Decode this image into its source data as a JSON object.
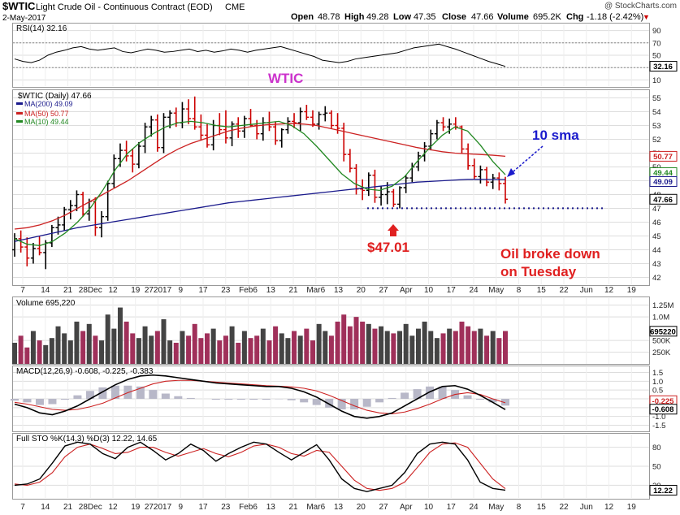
{
  "header": {
    "symbol": "$WTIC",
    "name": "Light Crude Oil - Continuous Contract (EOD)",
    "exchange": "CME",
    "date": "2-May-2017",
    "open_label": "Open",
    "open": "48.78",
    "high_label": "High",
    "high": "49.28",
    "low_label": "Low",
    "low": "47.35",
    "close_label": "Close",
    "close": "47.66",
    "volume_label": "Volume",
    "volume": "695.2K",
    "chg_label": "Chg",
    "chg": "-1.18 (-2.42%)",
    "chg_arrow": "▼",
    "credit": "@ StockCharts.com"
  },
  "colors": {
    "up": "#000000",
    "down": "#cc0000",
    "ma200": "#1a1a8c",
    "ma50": "#cc2222",
    "ma10": "#228822",
    "volume_bar": "#a0305a",
    "annotation_blue": "#1a1acc",
    "annotation_red": "#e02020",
    "wtic_label": "#cc33cc",
    "grid": "#dddddd"
  },
  "chart_data": [
    {
      "type": "line",
      "panel": "rsi",
      "title": "RSI(14) 32.16",
      "yticks": [
        10,
        30,
        50,
        70,
        90
      ],
      "ylim": [
        0,
        100
      ],
      "current_value": "32.16",
      "values": [
        44,
        40,
        38,
        42,
        50,
        55,
        58,
        62,
        64,
        60,
        58,
        60,
        62,
        56,
        54,
        57,
        60,
        58,
        55,
        56,
        58,
        60,
        56,
        58,
        55,
        57,
        60,
        58,
        55,
        58,
        60,
        62,
        64,
        60,
        56,
        52,
        48,
        42,
        40,
        38,
        40,
        44,
        46,
        48,
        50,
        52,
        54,
        58,
        62,
        64,
        66,
        68,
        64,
        60,
        55,
        50,
        45,
        40,
        36,
        32
      ]
    },
    {
      "type": "candlestick",
      "panel": "price",
      "title": "$WTIC (Daily) 47.66",
      "legend": [
        "MA(200) 49.09",
        "MA(50) 50.77",
        "MA(10) 49.44"
      ],
      "ylim": [
        41.5,
        55.5
      ],
      "yticks": [
        42,
        43,
        44,
        45,
        46,
        47,
        48,
        49,
        50,
        51,
        52,
        53,
        54,
        55
      ],
      "right_tags": [
        "50.77",
        "49.44",
        "49.09",
        "47.66"
      ],
      "xticks": [
        "7",
        "14",
        "21",
        "28Dec",
        "12",
        "19",
        "272017",
        "9",
        "17",
        "23",
        "Feb6",
        "13",
        "21",
        "Mar6",
        "13",
        "20",
        "27",
        "Apr",
        "10",
        "17",
        "24",
        "May",
        "8",
        "15",
        "22",
        "Jun",
        "12",
        "19"
      ],
      "ohlc": [
        [
          44.0,
          45.2,
          43.5,
          44.8
        ],
        [
          44.8,
          45.4,
          43.8,
          44.2
        ],
        [
          44.2,
          44.9,
          42.8,
          43.4
        ],
        [
          43.4,
          44.5,
          43.0,
          44.1
        ],
        [
          44.1,
          45.0,
          43.6,
          43.8
        ],
        [
          43.8,
          44.7,
          42.6,
          44.5
        ],
        [
          44.5,
          45.8,
          44.2,
          45.6
        ],
        [
          45.6,
          46.4,
          45.1,
          45.8
        ],
        [
          45.8,
          47.1,
          45.4,
          46.9
        ],
        [
          46.9,
          47.6,
          46.2,
          47.2
        ],
        [
          47.2,
          48.3,
          46.8,
          48.0
        ],
        [
          48.0,
          48.2,
          46.4,
          46.6
        ],
        [
          46.6,
          47.7,
          46.1,
          47.5
        ],
        [
          47.5,
          47.8,
          45.0,
          45.6
        ],
        [
          45.6,
          46.8,
          44.9,
          46.4
        ],
        [
          46.4,
          49.0,
          46.1,
          48.8
        ],
        [
          48.8,
          50.9,
          48.5,
          50.6
        ],
        [
          50.6,
          51.7,
          50.0,
          51.2
        ],
        [
          51.2,
          51.9,
          50.4,
          50.8
        ],
        [
          50.8,
          51.3,
          49.6,
          50.2
        ],
        [
          50.2,
          51.8,
          49.9,
          51.5
        ],
        [
          51.5,
          53.2,
          51.0,
          52.9
        ],
        [
          52.9,
          53.7,
          52.2,
          53.4
        ],
        [
          53.4,
          53.8,
          51.1,
          51.4
        ],
        [
          51.4,
          53.9,
          51.0,
          53.6
        ],
        [
          53.6,
          54.1,
          52.8,
          53.9
        ],
        [
          53.9,
          54.3,
          52.9,
          53.2
        ],
        [
          53.2,
          54.7,
          52.8,
          54.2
        ],
        [
          54.2,
          54.9,
          53.1,
          53.5
        ],
        [
          53.5,
          55.1,
          52.7,
          52.9
        ],
        [
          52.9,
          53.8,
          51.9,
          52.3
        ],
        [
          52.3,
          53.1,
          51.4,
          51.6
        ],
        [
          51.6,
          53.4,
          51.2,
          53.0
        ],
        [
          53.0,
          53.9,
          52.3,
          52.7
        ],
        [
          52.7,
          54.1,
          51.7,
          52.1
        ],
        [
          52.1,
          53.3,
          51.5,
          53.1
        ],
        [
          53.1,
          53.6,
          52.1,
          52.6
        ],
        [
          52.6,
          53.7,
          52.1,
          53.5
        ],
        [
          53.5,
          54.2,
          52.9,
          53.0
        ],
        [
          53.0,
          53.4,
          52.0,
          52.4
        ],
        [
          52.4,
          53.6,
          51.9,
          53.2
        ],
        [
          53.2,
          54.0,
          52.6,
          52.9
        ],
        [
          52.9,
          53.3,
          51.6,
          51.9
        ],
        [
          51.9,
          52.8,
          51.4,
          52.7
        ],
        [
          52.7,
          53.6,
          52.4,
          53.3
        ],
        [
          53.3,
          53.9,
          52.8,
          53.2
        ],
        [
          53.2,
          54.3,
          52.6,
          54.0
        ],
        [
          54.0,
          54.5,
          53.4,
          53.6
        ],
        [
          53.6,
          54.1,
          52.9,
          53.1
        ],
        [
          53.1,
          54.0,
          52.7,
          53.8
        ],
        [
          53.8,
          54.4,
          53.3,
          53.9
        ],
        [
          53.9,
          54.1,
          52.8,
          53.0
        ],
        [
          53.0,
          53.9,
          52.4,
          52.8
        ],
        [
          52.8,
          53.2,
          50.4,
          50.9
        ],
        [
          50.9,
          51.3,
          49.6,
          49.9
        ],
        [
          49.9,
          50.2,
          48.0,
          48.4
        ],
        [
          48.4,
          49.1,
          47.6,
          48.3
        ],
        [
          48.3,
          49.6,
          47.9,
          49.4
        ],
        [
          49.4,
          49.8,
          47.4,
          47.8
        ],
        [
          47.8,
          48.6,
          47.2,
          48.0
        ],
        [
          48.0,
          48.9,
          47.3,
          48.2
        ],
        [
          48.2,
          48.4,
          47.1,
          47.3
        ],
        [
          47.3,
          48.6,
          47.0,
          48.5
        ],
        [
          48.5,
          49.4,
          48.1,
          49.2
        ],
        [
          49.2,
          50.3,
          48.9,
          50.0
        ],
        [
          50.0,
          51.1,
          49.7,
          50.8
        ],
        [
          50.8,
          51.8,
          50.4,
          51.5
        ],
        [
          51.5,
          52.7,
          51.2,
          52.4
        ],
        [
          52.4,
          53.4,
          52.0,
          53.2
        ],
        [
          53.2,
          53.6,
          52.6,
          52.9
        ],
        [
          52.9,
          53.5,
          52.4,
          53.1
        ],
        [
          53.1,
          53.6,
          52.7,
          52.9
        ],
        [
          52.9,
          53.0,
          51.0,
          51.3
        ],
        [
          51.3,
          51.7,
          49.8,
          50.1
        ],
        [
          50.1,
          50.6,
          49.1,
          49.3
        ],
        [
          49.3,
          50.1,
          48.8,
          49.8
        ],
        [
          49.8,
          50.0,
          48.6,
          48.9
        ],
        [
          48.9,
          49.5,
          48.4,
          49.2
        ],
        [
          49.2,
          49.6,
          48.3,
          48.8
        ],
        [
          48.8,
          49.28,
          47.35,
          47.66
        ]
      ],
      "ma200": [
        44.6,
        44.8,
        45.0,
        45.2,
        45.4,
        45.6,
        45.75,
        45.9,
        46.05,
        46.2,
        46.35,
        46.5,
        46.65,
        46.8,
        46.95,
        47.1,
        47.25,
        47.4,
        47.5,
        47.6,
        47.7,
        47.8,
        47.9,
        48.0,
        48.1,
        48.2,
        48.3,
        48.4,
        48.5,
        48.6,
        48.7,
        48.8,
        48.9,
        48.95,
        49.0,
        49.05,
        49.1,
        49.1,
        49.09,
        49.09
      ],
      "ma50": [
        45.5,
        45.6,
        45.8,
        46.1,
        46.5,
        47.0,
        47.5,
        48.0,
        48.5,
        49.0,
        49.6,
        50.2,
        50.8,
        51.3,
        51.7,
        52.0,
        52.3,
        52.6,
        52.8,
        52.95,
        53.05,
        53.1,
        53.15,
        53.1,
        53.0,
        52.8,
        52.6,
        52.4,
        52.2,
        52.0,
        51.8,
        51.6,
        51.4,
        51.25,
        51.1,
        51.0,
        50.95,
        50.9,
        50.85,
        50.77
      ],
      "ma10": [
        44.8,
        44.4,
        44.3,
        44.6,
        45.2,
        46.0,
        47.0,
        48.3,
        49.8,
        51.0,
        51.8,
        52.4,
        52.9,
        53.2,
        53.3,
        53.2,
        53.0,
        52.9,
        53.0,
        53.1,
        53.2,
        53.3,
        53.0,
        52.4,
        51.5,
        50.5,
        49.5,
        48.8,
        48.4,
        48.3,
        48.6,
        49.3,
        50.4,
        51.4,
        52.3,
        52.9,
        52.6,
        51.6,
        50.4,
        49.44
      ],
      "support_level": 47.01,
      "annotations": [
        "WTIC",
        "10 sma",
        "$47.01",
        "Oil broke down",
        "on Tuesday"
      ]
    },
    {
      "type": "bar",
      "panel": "volume",
      "title": "Volume 695,220",
      "yticks": [
        "250K",
        "500K",
        "1.0M",
        "1.25M"
      ],
      "current_value": "695220",
      "values": [
        0.45,
        0.6,
        0.35,
        0.7,
        0.5,
        0.4,
        0.55,
        0.8,
        0.65,
        0.5,
        0.9,
        0.7,
        0.85,
        0.6,
        0.5,
        1.05,
        0.75,
        1.2,
        0.9,
        0.65,
        0.55,
        0.8,
        0.6,
        0.7,
        0.95,
        0.5,
        0.45,
        0.7,
        0.6,
        0.85,
        0.55,
        0.65,
        0.75,
        0.5,
        0.6,
        0.8,
        0.45,
        0.7,
        0.55,
        0.6,
        0.75,
        0.5,
        0.8,
        0.65,
        0.55,
        0.7,
        0.6,
        0.75,
        0.5,
        0.85,
        0.7,
        0.6,
        0.9,
        1.05,
        0.8,
        1.0,
        0.9,
        0.85,
        0.75,
        0.8,
        0.7,
        0.65,
        0.7,
        0.85,
        0.6,
        0.75,
        0.9,
        0.7,
        0.55,
        0.65,
        0.75,
        0.7,
        0.9,
        0.8,
        0.7,
        0.75,
        0.6,
        0.7,
        0.55,
        0.7
      ]
    },
    {
      "type": "line",
      "panel": "macd",
      "title": "MACD(12,26,9) -0.608, -0.225, -0.383",
      "yticks": [
        1.5,
        1.0,
        0.5,
        0.0,
        -0.5,
        -1.0,
        -1.5
      ],
      "right_tags": [
        "-0.225",
        "-0.608"
      ],
      "macd": [
        -0.3,
        -0.5,
        -0.8,
        -0.9,
        -0.7,
        -0.4,
        0.0,
        0.4,
        0.8,
        1.1,
        1.3,
        1.35,
        1.3,
        1.2,
        1.1,
        1.0,
        0.9,
        0.85,
        0.8,
        0.75,
        0.7,
        0.7,
        0.6,
        0.4,
        0.1,
        -0.3,
        -0.7,
        -1.0,
        -1.1,
        -1.0,
        -0.8,
        -0.4,
        0.0,
        0.4,
        0.7,
        0.75,
        0.55,
        0.2,
        -0.2,
        -0.608
      ],
      "signal": [
        -0.2,
        -0.3,
        -0.45,
        -0.6,
        -0.65,
        -0.6,
        -0.45,
        -0.25,
        0.05,
        0.35,
        0.6,
        0.85,
        1.0,
        1.05,
        1.05,
        1.0,
        0.95,
        0.9,
        0.85,
        0.8,
        0.75,
        0.72,
        0.68,
        0.6,
        0.45,
        0.2,
        -0.1,
        -0.4,
        -0.65,
        -0.8,
        -0.85,
        -0.75,
        -0.55,
        -0.3,
        0.0,
        0.25,
        0.35,
        0.25,
        0.0,
        -0.225
      ],
      "histogram": [
        -0.1,
        -0.2,
        -0.35,
        -0.3,
        -0.05,
        0.2,
        0.45,
        0.65,
        0.75,
        0.75,
        0.7,
        0.5,
        0.3,
        0.15,
        0.05,
        0.0,
        -0.05,
        -0.05,
        -0.05,
        -0.05,
        -0.05,
        -0.02,
        -0.08,
        -0.2,
        -0.35,
        -0.5,
        -0.6,
        -0.6,
        -0.45,
        -0.2,
        0.05,
        0.35,
        0.55,
        0.7,
        0.7,
        0.5,
        0.2,
        -0.05,
        -0.2,
        -0.383
      ]
    },
    {
      "type": "line",
      "panel": "stochastic",
      "title": "Full STO %K(14,3) %D(3) 12.22, 14.65",
      "yticks": [
        20,
        50,
        80
      ],
      "right_tags": [
        "12.22"
      ],
      "k": [
        20,
        22,
        30,
        55,
        82,
        88,
        85,
        70,
        62,
        80,
        88,
        75,
        60,
        70,
        85,
        75,
        58,
        70,
        80,
        88,
        85,
        72,
        60,
        72,
        84,
        60,
        30,
        15,
        10,
        15,
        20,
        40,
        70,
        85,
        88,
        85,
        60,
        25,
        15,
        12.22
      ],
      "d": [
        22,
        20,
        25,
        40,
        65,
        80,
        85,
        78,
        70,
        72,
        80,
        80,
        72,
        66,
        72,
        78,
        70,
        65,
        72,
        82,
        85,
        80,
        70,
        66,
        75,
        72,
        50,
        28,
        15,
        12,
        15,
        25,
        48,
        72,
        85,
        87,
        80,
        55,
        30,
        14.65
      ]
    }
  ]
}
